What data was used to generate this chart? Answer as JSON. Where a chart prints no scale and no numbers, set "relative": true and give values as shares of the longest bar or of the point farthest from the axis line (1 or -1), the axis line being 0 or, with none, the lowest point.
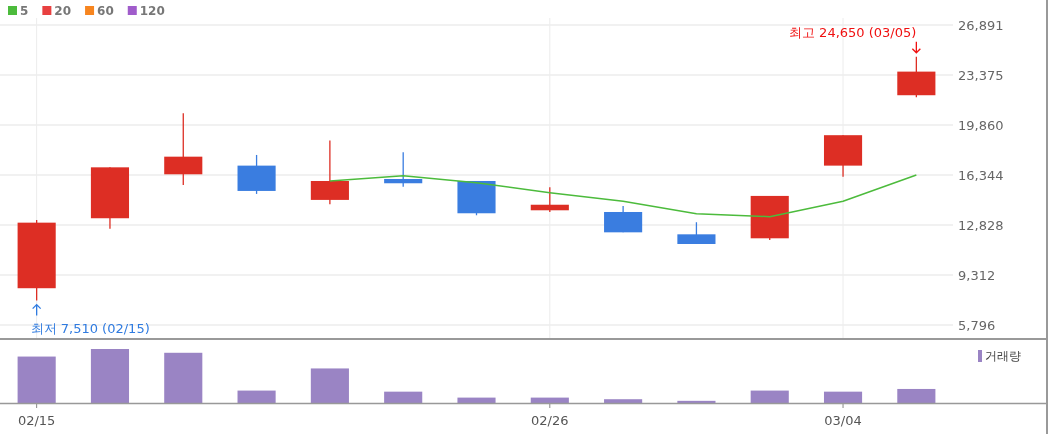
{
  "chart_data": [
    {
      "type": "candlestick",
      "categories": [
        null,
        null,
        null,
        null,
        null,
        null,
        null,
        null,
        null,
        null,
        null,
        null,
        null
      ],
      "ohlc": [
        [
          8380,
          13180,
          7510,
          12990
        ],
        [
          13300,
          16880,
          12570,
          16880
        ],
        [
          16390,
          20680,
          15640,
          17630
        ],
        [
          17000,
          17750,
          15010,
          15220
        ],
        [
          14590,
          18760,
          14280,
          15920
        ],
        [
          16060,
          17940,
          15520,
          15760
        ],
        [
          15920,
          15920,
          13510,
          13650
        ],
        [
          13860,
          15480,
          13740,
          14250
        ],
        [
          13740,
          14160,
          12310,
          12310
        ],
        [
          12170,
          13020,
          11490,
          11490
        ],
        [
          11890,
          14870,
          11770,
          14870
        ],
        [
          17000,
          19140,
          16220,
          19140
        ],
        [
          21950,
          24650,
          21810,
          23610
        ]
      ],
      "colors": [
        "#dd2e24",
        "#dd2e24",
        "#dd2e24",
        "#3a7de0",
        "#dd2e24",
        "#3a7de0",
        "#3a7de0",
        "#dd2e24",
        "#3a7de0",
        "#3a7de0",
        "#dd2e24",
        "#dd2e24",
        "#dd2e24"
      ],
      "series": [
        {
          "type": "line",
          "name": "5",
          "color": "#4cbb3c",
          "values": [
            null,
            null,
            null,
            null,
            15920,
            16290,
            15800,
            15100,
            14490,
            13620,
            13410,
            14490,
            16340
          ]
        },
        {
          "type": "line",
          "name": "20",
          "color": "#e84040",
          "values": [
            null,
            null,
            null,
            null,
            null,
            null,
            null,
            null,
            null,
            null,
            null,
            null,
            null
          ]
        },
        {
          "type": "line",
          "name": "60",
          "color": "#f7851f",
          "values": [
            null,
            null,
            null,
            null,
            null,
            null,
            null,
            null,
            null,
            null,
            null,
            null,
            null
          ]
        },
        {
          "type": "line",
          "name": "120",
          "color": "#a05ccb",
          "values": [
            null,
            null,
            null,
            null,
            null,
            null,
            null,
            null,
            null,
            null,
            null,
            null,
            null
          ]
        }
      ],
      "ylim": [
        4880,
        27380
      ],
      "yticks": [
        {
          "value": 5796,
          "label": "5,796"
        },
        {
          "value": 9312,
          "label": "9,312"
        },
        {
          "value": 12828,
          "label": "12,828"
        },
        {
          "value": 16344,
          "label": "16,344"
        },
        {
          "value": 19860,
          "label": "19,860"
        },
        {
          "value": 23375,
          "label": "23,375"
        },
        {
          "value": 26891,
          "label": "26,891"
        }
      ],
      "annotations": [
        "최고 24,650 (03/05)",
        "최저 7,510 (02/15)"
      ],
      "grid": true,
      "legend": "top left",
      "tick_labels": "y",
      "marker": "none"
    },
    {
      "type": "bar",
      "relative": true,
      "categories": [
        "02/15",
        null,
        null,
        null,
        null,
        null,
        null,
        "02/26",
        null,
        null,
        null,
        "03/04",
        null
      ],
      "series": [
        {
          "name": "거래량",
          "color": "#9a84c4",
          "values": [
            0.86,
            1,
            0.93,
            0.23,
            0.64,
            0.21,
            0.1,
            0.1,
            0.07,
            0.04,
            0.23,
            0.21,
            0.26
          ]
        }
      ],
      "legend": "top right",
      "tick_labels": "x",
      "grid": false
    }
  ]
}
